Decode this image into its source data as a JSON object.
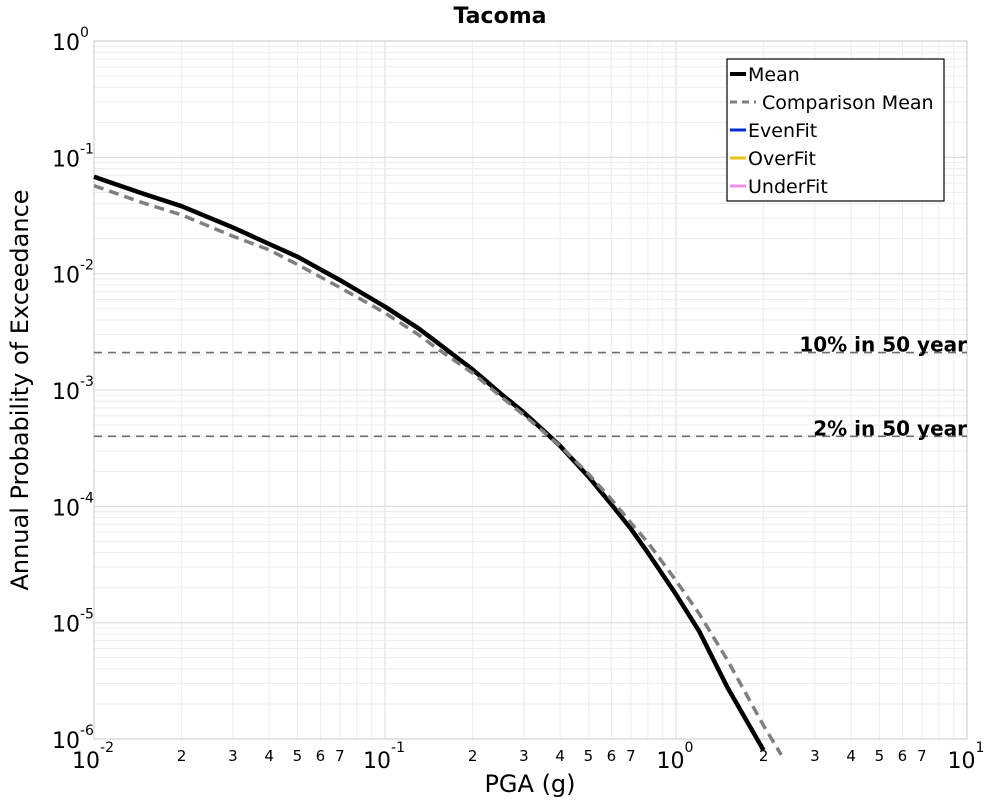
{
  "chart_data": {
    "type": "line",
    "title": "Tacoma",
    "xlabel": "PGA (g)",
    "ylabel": "Annual Probability of Exceedance",
    "xscale": "log",
    "yscale": "log",
    "xlim": [
      0.01,
      10
    ],
    "ylim": [
      1e-06,
      1
    ],
    "x_ticks": [
      {
        "base": "10",
        "exp": "-2"
      },
      {
        "base": "10",
        "exp": "-1"
      },
      {
        "base": "10",
        "exp": "0"
      },
      {
        "base": "10",
        "exp": "1"
      }
    ],
    "y_ticks": [
      {
        "base": "10",
        "exp": "0"
      },
      {
        "base": "10",
        "exp": "-1"
      },
      {
        "base": "10",
        "exp": "-2"
      },
      {
        "base": "10",
        "exp": "-3"
      },
      {
        "base": "10",
        "exp": "-4"
      },
      {
        "base": "10",
        "exp": "-5"
      },
      {
        "base": "10",
        "exp": "-6"
      }
    ],
    "x_minor_labels": [
      "2",
      "3",
      "4",
      "5",
      "6",
      "7"
    ],
    "grid": true,
    "legend_position": "top-right",
    "series": [
      {
        "name": "Mean",
        "color": "#000000",
        "style": "solid",
        "x": [
          0.01,
          0.015,
          0.02,
          0.03,
          0.04,
          0.05,
          0.07,
          0.1,
          0.13,
          0.15,
          0.2,
          0.25,
          0.3,
          0.35,
          0.4,
          0.5,
          0.6,
          0.7,
          0.8,
          1.0,
          1.2,
          1.5,
          2.0
        ],
        "y": [
          0.068,
          0.048,
          0.038,
          0.025,
          0.018,
          0.014,
          0.0088,
          0.0052,
          0.0034,
          0.0026,
          0.0015,
          0.00093,
          0.00064,
          0.00045,
          0.00033,
          0.00018,
          0.000104,
          6.4e-05,
          4e-05,
          1.75e-05,
          8.5e-06,
          2.8e-06,
          8e-07
        ]
      },
      {
        "name": "Comparison Mean",
        "color": "#7f7f7f",
        "style": "dashed",
        "x": [
          0.01,
          0.015,
          0.02,
          0.03,
          0.04,
          0.05,
          0.07,
          0.1,
          0.13,
          0.15,
          0.2,
          0.25,
          0.3,
          0.35,
          0.4,
          0.5,
          0.6,
          0.7,
          0.8,
          1.0,
          1.2,
          1.5,
          2.0,
          2.3
        ],
        "y": [
          0.057,
          0.04,
          0.032,
          0.021,
          0.016,
          0.012,
          0.0076,
          0.0046,
          0.003,
          0.0023,
          0.0014,
          0.00088,
          0.00061,
          0.00044,
          0.00033,
          0.00019,
          0.000115,
          7.2e-05,
          4.9e-05,
          2.3e-05,
          1.2e-05,
          4.8e-06,
          1.3e-06,
          7.3e-07
        ]
      },
      {
        "name": "EvenFit",
        "color": "#0a2bd9",
        "style": "solid",
        "x": [],
        "y": []
      },
      {
        "name": "OverFit",
        "color": "#e6c619",
        "style": "solid",
        "x": [],
        "y": []
      },
      {
        "name": "UnderFit",
        "color": "#f58ee8",
        "style": "solid",
        "x": [],
        "y": []
      }
    ],
    "reference_lines": [
      {
        "label": "10% in 50 year",
        "y": 0.0021
      },
      {
        "label": "2% in 50 year",
        "y": 0.0004
      }
    ]
  }
}
